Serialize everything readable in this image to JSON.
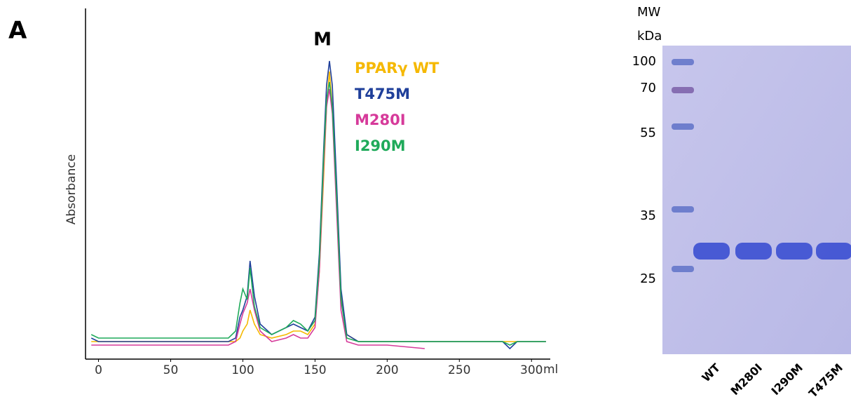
{
  "panel_label": "A",
  "chart_data": {
    "type": "line",
    "y_label": "Absorbance",
    "x_label": "ml",
    "annotation": "M",
    "x": [
      -5,
      0,
      20,
      50,
      80,
      90,
      95,
      98,
      100,
      103,
      105,
      108,
      112,
      120,
      130,
      135,
      140,
      145,
      150,
      153,
      156,
      158,
      160,
      162,
      165,
      168,
      172,
      180,
      200,
      226,
      250,
      280,
      285,
      290,
      310
    ],
    "series": [
      {
        "name": "PPARγ WT",
        "color": "#f5b800",
        "values": [
          5,
          5,
          5,
          5,
          5,
          5,
          5,
          6,
          8,
          10,
          14,
          10,
          7,
          6,
          7,
          8,
          8,
          7,
          10,
          25,
          52,
          72,
          82,
          72,
          45,
          18,
          7,
          5,
          5,
          5,
          5,
          5,
          5,
          5,
          5
        ]
      },
      {
        "name": "T475M",
        "color": "#1f3f9a",
        "values": [
          6,
          5,
          5,
          5,
          5,
          5,
          6,
          12,
          14,
          18,
          28,
          18,
          10,
          7,
          9,
          10,
          9,
          8,
          12,
          30,
          60,
          78,
          85,
          78,
          50,
          20,
          7,
          5,
          5,
          5,
          5,
          5,
          3,
          5,
          5
        ]
      },
      {
        "name": "M280I",
        "color": "#d63a9a",
        "values": [
          4,
          4,
          4,
          4,
          4,
          4,
          5,
          10,
          13,
          16,
          20,
          14,
          8,
          5,
          6,
          7,
          6,
          6,
          9,
          25,
          55,
          72,
          77,
          70,
          42,
          14,
          5,
          4,
          4,
          3,
          null,
          null,
          null,
          null,
          null
        ]
      },
      {
        "name": "I290M",
        "color": "#1faa5a",
        "values": [
          7,
          6,
          6,
          6,
          6,
          6,
          8,
          16,
          20,
          17,
          26,
          15,
          9,
          7,
          9,
          11,
          10,
          8,
          11,
          28,
          58,
          74,
          79,
          72,
          46,
          17,
          6,
          5,
          5,
          5,
          5,
          5,
          4,
          5,
          5
        ]
      }
    ],
    "xlim": [
      -9,
      313
    ],
    "ylim": [
      0,
      100
    ],
    "xticks": [
      0,
      50,
      100,
      150,
      200,
      250,
      300
    ]
  },
  "gel": {
    "mw_title": "MW",
    "unit": "kDa",
    "markers": [
      "100",
      "70",
      "55",
      "35",
      "25"
    ],
    "lanes": [
      "WT",
      "M280I",
      "I290M",
      "T475M"
    ]
  }
}
